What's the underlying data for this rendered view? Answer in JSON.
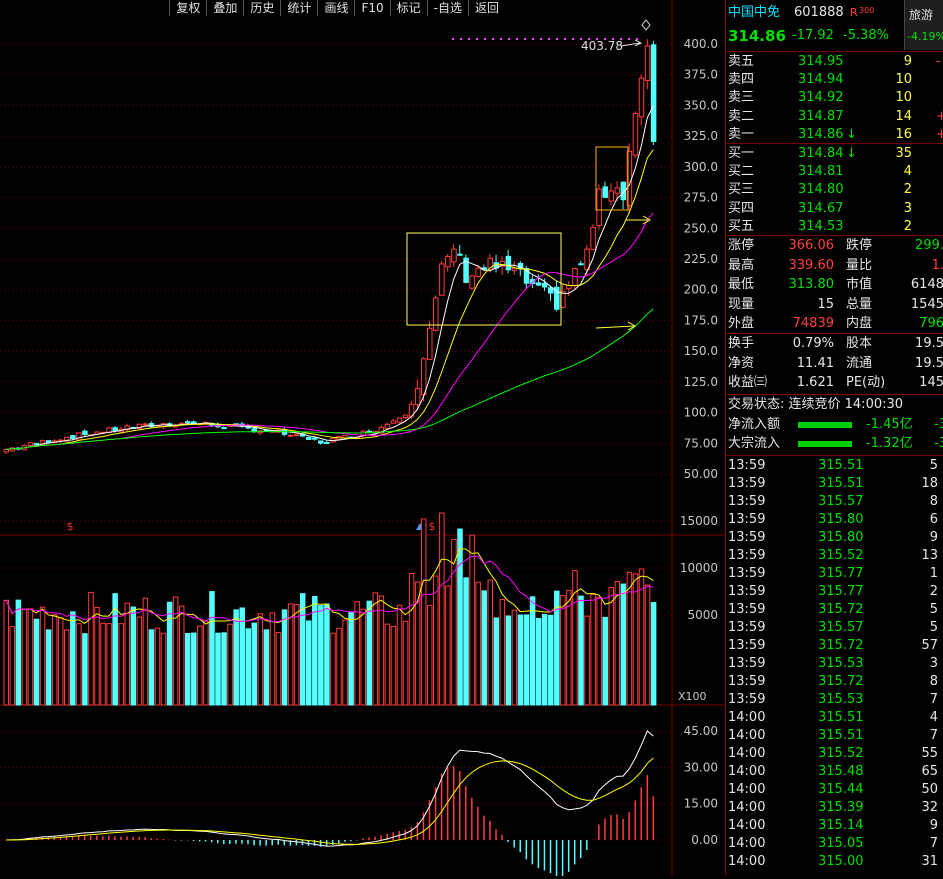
{
  "toolbar": [
    "复权",
    "叠加",
    "历史",
    "统计",
    "画线",
    "F10",
    "标记",
    "-自选",
    "返回"
  ],
  "price_axis": [
    "400.0",
    "375.0",
    "350.0",
    "325.0",
    "300.0",
    "275.0",
    "250.0",
    "225.0",
    "200.0",
    "175.0",
    "150.0",
    "125.0",
    "100.0",
    "75.00",
    "50.00"
  ],
  "peak_label": "403.78",
  "volume_axis": [
    "15000",
    "10000",
    "5000"
  ],
  "volume_unit": "X100",
  "macd_axis": [
    "45.00",
    "30.00",
    "15.00",
    "0.00"
  ],
  "markers": [
    "$",
    "$"
  ],
  "header": {
    "name": "中国中免",
    "code": "601888",
    "tag": "R",
    "tag_num": "300",
    "sector": "旅游",
    "sector_chg": "-4.19%",
    "price": "314.86",
    "change": "-17.92",
    "change_pct": "-5.38%"
  },
  "asks": [
    {
      "label": "卖五",
      "price": "314.95",
      "vol": "9",
      "extra": "-"
    },
    {
      "label": "卖四",
      "price": "314.94",
      "vol": "10",
      "extra": ""
    },
    {
      "label": "卖三",
      "price": "314.92",
      "vol": "10",
      "extra": ""
    },
    {
      "label": "卖二",
      "price": "314.87",
      "vol": "14",
      "extra": "+"
    },
    {
      "label": "卖一",
      "price": "314.86",
      "vol": "16",
      "extra": "+"
    }
  ],
  "bids": [
    {
      "label": "买一",
      "price": "314.84",
      "vol": "35",
      "extra": ""
    },
    {
      "label": "买二",
      "price": "314.81",
      "vol": "4",
      "extra": ""
    },
    {
      "label": "买三",
      "price": "314.80",
      "vol": "2",
      "extra": ""
    },
    {
      "label": "买四",
      "price": "314.67",
      "vol": "3",
      "extra": ""
    },
    {
      "label": "买五",
      "price": "314.53",
      "vol": "2",
      "extra": ""
    }
  ],
  "stats": [
    {
      "l1": "涨停",
      "v1": "366.06",
      "l2": "跌停",
      "v2": "299."
    },
    {
      "l1": "最高",
      "v1": "339.60",
      "l2": "量比",
      "v2": "1."
    },
    {
      "l1": "最低",
      "v1": "313.80",
      "l2": "市值",
      "v2": "6148"
    },
    {
      "l1": "现量",
      "v1": "15",
      "l2": "总量",
      "v2": "1545"
    },
    {
      "l1": "外盘",
      "v1": "74839",
      "l2": "内盘",
      "v2": "796"
    }
  ],
  "stats2": [
    {
      "l1": "换手",
      "v1": "0.79%",
      "l2": "股本",
      "v2": "19.5"
    },
    {
      "l1": "净资",
      "v1": "11.41",
      "l2": "流通",
      "v2": "19.5"
    },
    {
      "l1": "收益㈢",
      "v1": "1.621",
      "l2": "PE(动)",
      "v2": "145"
    }
  ],
  "trade_status": "交易状态: 连续竞价 14:00:30",
  "flows": [
    {
      "label": "净流入额",
      "value": "-1.45亿",
      "extra": "-3"
    },
    {
      "label": "大宗流入",
      "value": "-1.32亿",
      "extra": "-3"
    }
  ],
  "ticks": [
    {
      "t": "13:59",
      "p": "315.51",
      "v": "5"
    },
    {
      "t": "13:59",
      "p": "315.51",
      "v": "18"
    },
    {
      "t": "13:59",
      "p": "315.57",
      "v": "8"
    },
    {
      "t": "13:59",
      "p": "315.80",
      "v": "6"
    },
    {
      "t": "13:59",
      "p": "315.80",
      "v": "9"
    },
    {
      "t": "13:59",
      "p": "315.52",
      "v": "13"
    },
    {
      "t": "13:59",
      "p": "315.77",
      "v": "1"
    },
    {
      "t": "13:59",
      "p": "315.77",
      "v": "2"
    },
    {
      "t": "13:59",
      "p": "315.72",
      "v": "5"
    },
    {
      "t": "13:59",
      "p": "315.57",
      "v": "5"
    },
    {
      "t": "13:59",
      "p": "315.72",
      "v": "57"
    },
    {
      "t": "13:59",
      "p": "315.53",
      "v": "3"
    },
    {
      "t": "13:59",
      "p": "315.72",
      "v": "8"
    },
    {
      "t": "13:59",
      "p": "315.53",
      "v": "7"
    },
    {
      "t": "14:00",
      "p": "315.51",
      "v": "4"
    },
    {
      "t": "14:00",
      "p": "315.51",
      "v": "7"
    },
    {
      "t": "14:00",
      "p": "315.52",
      "v": "55"
    },
    {
      "t": "14:00",
      "p": "315.48",
      "v": "65"
    },
    {
      "t": "14:00",
      "p": "315.44",
      "v": "50"
    },
    {
      "t": "14:00",
      "p": "315.39",
      "v": "32"
    },
    {
      "t": "14:00",
      "p": "315.14",
      "v": "9"
    },
    {
      "t": "14:00",
      "p": "315.05",
      "v": "7"
    },
    {
      "t": "14:00",
      "p": "315.00",
      "v": "31"
    }
  ],
  "colors": {
    "up": "#ff3b3b",
    "down": "#54ffff",
    "ma5": "#ffffff",
    "ma10": "#ffff00",
    "ma20": "#ff00ff",
    "ma60": "#00ff00",
    "grid": "#7a0000"
  }
}
